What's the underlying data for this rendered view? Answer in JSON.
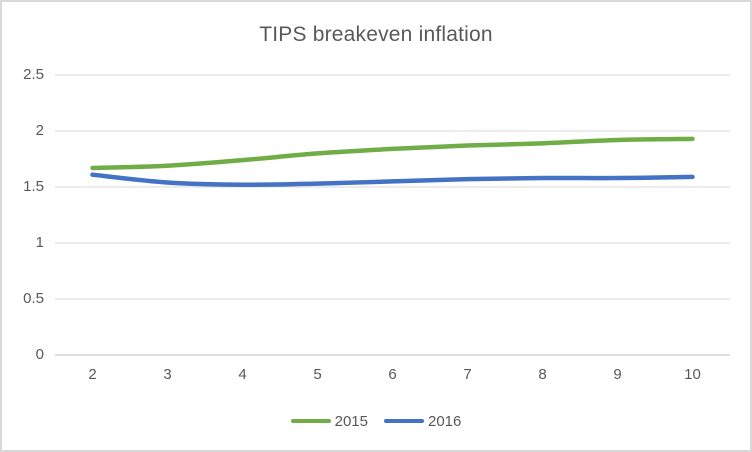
{
  "chart": {
    "title": "TIPS breakeven inflation"
  },
  "chart_data": {
    "type": "line",
    "title": "TIPS breakeven inflation",
    "xlabel": "",
    "ylabel": "",
    "x": [
      2,
      3,
      4,
      5,
      6,
      7,
      8,
      9,
      10
    ],
    "x_tick_labels": [
      "2",
      "3",
      "4",
      "5",
      "6",
      "7",
      "8",
      "9",
      "10"
    ],
    "y_ticks": [
      0,
      0.5,
      1,
      1.5,
      2,
      2.5
    ],
    "y_tick_labels": [
      "0",
      "0.5",
      "1",
      "1.5",
      "2",
      "2.5"
    ],
    "ylim": [
      0,
      2.5
    ],
    "grid": true,
    "legend_position": "bottom",
    "series": [
      {
        "name": "2015",
        "color": "#70AD47",
        "values": [
          1.67,
          1.69,
          1.74,
          1.8,
          1.84,
          1.87,
          1.89,
          1.92,
          1.93
        ]
      },
      {
        "name": "2016",
        "color": "#4472C4",
        "values": [
          1.61,
          1.54,
          1.52,
          1.53,
          1.55,
          1.57,
          1.58,
          1.58,
          1.59
        ]
      }
    ]
  },
  "colors": {
    "gridline": "#D9D9D9",
    "axis_line": "#BFBFBF",
    "text": "#595959",
    "frame_border": "#D9D9D9",
    "background": "#FFFFFF"
  }
}
